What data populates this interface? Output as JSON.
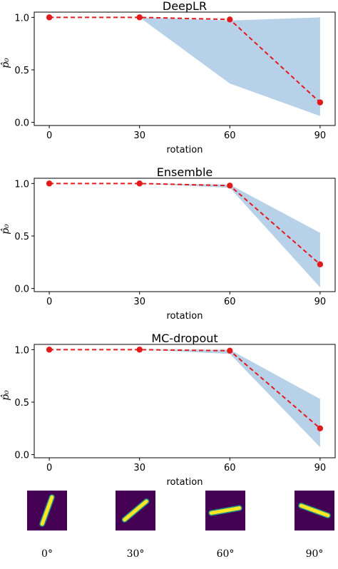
{
  "chart_data": [
    {
      "type": "line",
      "title": "DeepLR",
      "xlabel": "rotation",
      "ylabel": "p̂₀",
      "x": [
        0,
        30,
        60,
        90
      ],
      "xticks": [
        "0",
        "30",
        "60",
        "90"
      ],
      "yticks": [
        "0.0",
        "0.5",
        "1.0"
      ],
      "ylim": [
        0,
        1.05
      ],
      "series": [
        {
          "values": [
            1.0,
            1.0,
            0.98,
            0.19
          ],
          "band_lower": [
            1.0,
            1.0,
            0.37,
            0.06
          ],
          "band_upper": [
            1.0,
            1.0,
            0.97,
            1.0
          ],
          "line_color": "#e31a1c",
          "band_color": "#b7d2e8"
        }
      ],
      "grid": false,
      "legend": "none"
    },
    {
      "type": "line",
      "title": "Ensemble",
      "xlabel": "rotation",
      "ylabel": "p̂₀",
      "x": [
        0,
        30,
        60,
        90
      ],
      "xticks": [
        "0",
        "30",
        "60",
        "90"
      ],
      "yticks": [
        "0.0",
        "0.5",
        "1.0"
      ],
      "ylim": [
        0,
        1.05
      ],
      "series": [
        {
          "values": [
            1.0,
            1.0,
            0.98,
            0.23
          ],
          "band_lower": [
            1.0,
            1.0,
            0.96,
            0.01
          ],
          "band_upper": [
            1.0,
            1.0,
            0.99,
            0.53
          ],
          "line_color": "#e31a1c",
          "band_color": "#b7d2e8"
        }
      ],
      "grid": false,
      "legend": "none"
    },
    {
      "type": "line",
      "title": "MC-dropout",
      "xlabel": "rotation",
      "ylabel": "p̂₀",
      "x": [
        0,
        30,
        60,
        90
      ],
      "xticks": [
        "0",
        "30",
        "60",
        "90"
      ],
      "yticks": [
        "0.0",
        "0.5",
        "1.0"
      ],
      "ylim": [
        0,
        1.05
      ],
      "series": [
        {
          "values": [
            1.0,
            1.0,
            0.99,
            0.25
          ],
          "band_lower": [
            1.0,
            1.0,
            0.96,
            0.07
          ],
          "band_upper": [
            1.0,
            1.0,
            1.0,
            0.53
          ],
          "line_color": "#e31a1c",
          "band_color": "#b7d2e8"
        }
      ],
      "grid": false,
      "legend": "none"
    }
  ],
  "digit_images": [
    {
      "label": "0°",
      "rotation_deg": 0
    },
    {
      "label": "30°",
      "rotation_deg": 30
    },
    {
      "label": "60°",
      "rotation_deg": 60
    },
    {
      "label": "90°",
      "rotation_deg": 90
    }
  ],
  "colors": {
    "image_background": "#440154",
    "stroke_outer": "#21918c",
    "stroke_inner": "#fde725"
  }
}
